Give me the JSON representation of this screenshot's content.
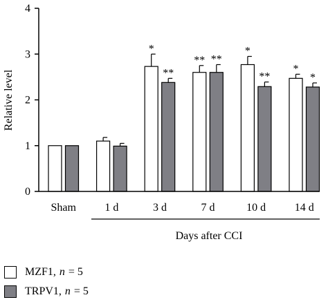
{
  "chart_data": {
    "type": "bar",
    "categories": [
      "Sham",
      "1 d",
      "3 d",
      "7 d",
      "10 d",
      "14 d"
    ],
    "series": [
      {
        "name": "MZF1",
        "n_value": "5",
        "values": [
          1.0,
          1.1,
          2.73,
          2.6,
          2.77,
          2.47
        ],
        "errors": [
          0.0,
          0.08,
          0.27,
          0.15,
          0.18,
          0.09
        ],
        "significance": [
          "",
          "",
          "*",
          "**",
          "*",
          "*"
        ],
        "color": "#ffffff"
      },
      {
        "name": "TRPV1",
        "n_value": "5",
        "values": [
          1.0,
          0.99,
          2.38,
          2.6,
          2.29,
          2.28
        ],
        "errors": [
          0.0,
          0.06,
          0.09,
          0.17,
          0.1,
          0.09
        ],
        "significance": [
          "",
          "",
          "**",
          "**",
          "**",
          "*"
        ],
        "color": "#7f7f85"
      }
    ],
    "ylabel": "Relative level",
    "xlabel": "Days after CCI",
    "ylim": [
      0,
      4
    ],
    "yticks": [
      "0",
      "1",
      "2",
      "3",
      "4"
    ],
    "grid": false,
    "legend_position": "bottom-left"
  },
  "legend": {
    "items": [
      {
        "name": "MZF1",
        "sep": ",",
        "n_symbol": "n",
        "eq": "= 5"
      },
      {
        "name": "TRPV1",
        "sep": ",",
        "n_symbol": "n",
        "eq": "= 5"
      }
    ]
  }
}
